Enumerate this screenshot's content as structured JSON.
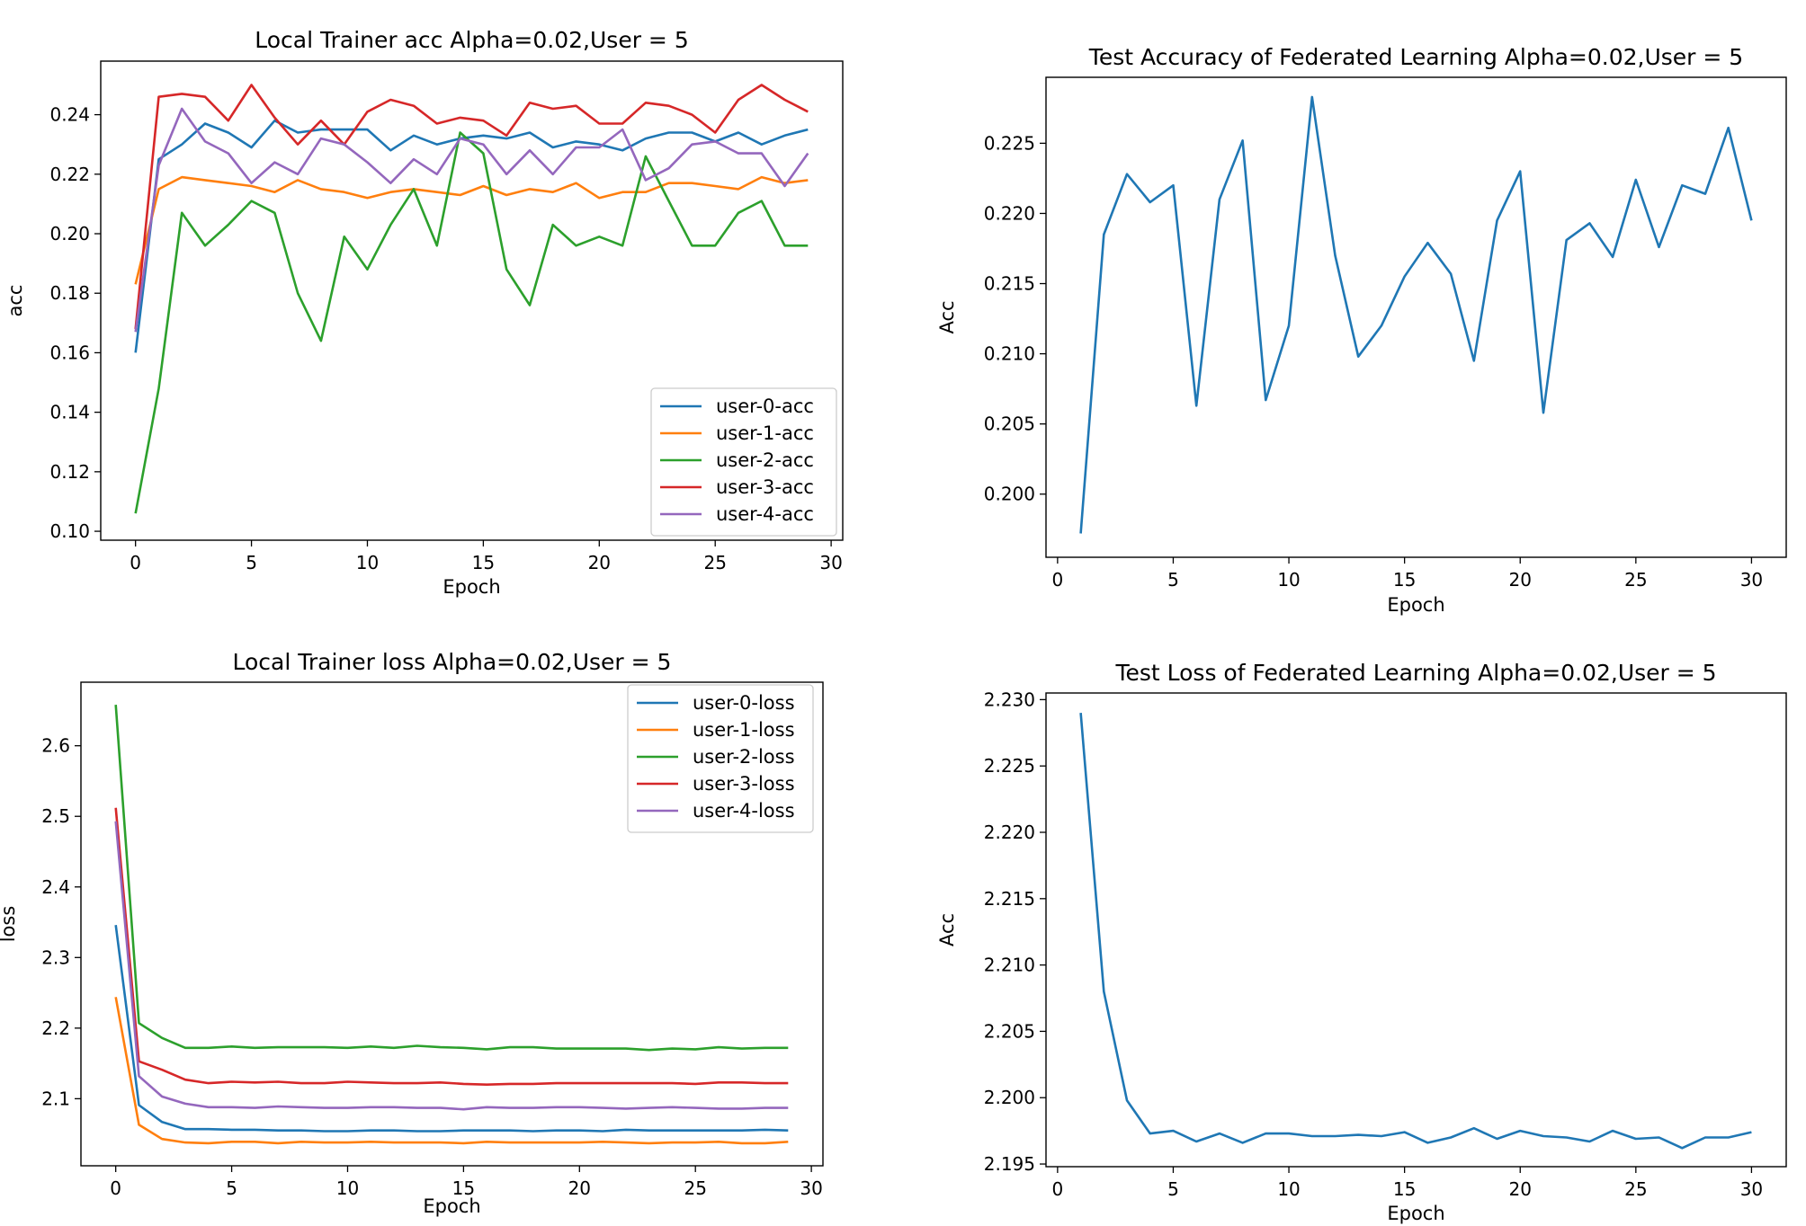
{
  "figure": {
    "charts": [
      {
        "type": "line",
        "title": "Local Trainer acc Alpha=0.02,User = 5",
        "xlabel": "Epoch",
        "ylabel": "acc",
        "xlim": [
          -1.5,
          30.5
        ],
        "ylim": [
          0.097,
          0.258
        ],
        "xticks": [
          0,
          5,
          10,
          15,
          20,
          25,
          30
        ],
        "yticks": [
          0.1,
          0.12,
          0.14,
          0.16,
          0.18,
          0.2,
          0.22,
          0.24
        ],
        "ytick_decimals": 2,
        "legend": "lower-right",
        "grid": false,
        "series": [
          {
            "name": "user-0-acc",
            "color": "#1f77b4",
            "x_start": 0,
            "values": [
              0.16,
              0.225,
              0.23,
              0.237,
              0.234,
              0.229,
              0.238,
              0.234,
              0.235,
              0.235,
              0.235,
              0.228,
              0.233,
              0.23,
              0.232,
              0.233,
              0.232,
              0.234,
              0.229,
              0.231,
              0.23,
              0.228,
              0.232,
              0.234,
              0.234,
              0.231,
              0.234,
              0.23,
              0.233,
              0.235
            ]
          },
          {
            "name": "user-1-acc",
            "color": "#ff7f0e",
            "x_start": 0,
            "values": [
              0.183,
              0.215,
              0.219,
              0.218,
              0.217,
              0.216,
              0.214,
              0.218,
              0.215,
              0.214,
              0.212,
              0.214,
              0.215,
              0.214,
              0.213,
              0.216,
              0.213,
              0.215,
              0.214,
              0.217,
              0.212,
              0.214,
              0.214,
              0.217,
              0.217,
              0.216,
              0.215,
              0.219,
              0.217,
              0.218
            ]
          },
          {
            "name": "user-2-acc",
            "color": "#2ca02c",
            "x_start": 0,
            "values": [
              0.106,
              0.148,
              0.207,
              0.196,
              0.203,
              0.211,
              0.207,
              0.18,
              0.164,
              0.199,
              0.188,
              0.203,
              0.215,
              0.196,
              0.234,
              0.227,
              0.188,
              0.176,
              0.203,
              0.196,
              0.199,
              0.196,
              0.226,
              0.211,
              0.196,
              0.196,
              0.207,
              0.211,
              0.196,
              0.196
            ]
          },
          {
            "name": "user-3-acc",
            "color": "#d62728",
            "x_start": 0,
            "values": [
              0.168,
              0.246,
              0.247,
              0.246,
              0.238,
              0.25,
              0.239,
              0.23,
              0.238,
              0.23,
              0.241,
              0.245,
              0.243,
              0.237,
              0.239,
              0.238,
              0.233,
              0.244,
              0.242,
              0.243,
              0.237,
              0.237,
              0.244,
              0.243,
              0.24,
              0.234,
              0.245,
              0.25,
              0.245,
              0.241
            ]
          },
          {
            "name": "user-4-acc",
            "color": "#9467bd",
            "x_start": 0,
            "values": [
              0.167,
              0.223,
              0.242,
              0.231,
              0.227,
              0.217,
              0.224,
              0.22,
              0.232,
              0.23,
              0.224,
              0.217,
              0.225,
              0.22,
              0.232,
              0.23,
              0.22,
              0.228,
              0.22,
              0.229,
              0.229,
              0.235,
              0.218,
              0.222,
              0.23,
              0.231,
              0.227,
              0.227,
              0.216,
              0.227
            ]
          }
        ]
      },
      {
        "type": "line",
        "title": "Test Accuracy of Federated Learning Alpha=0.02,User = 5",
        "xlabel": "Epoch",
        "ylabel": "Acc",
        "xlim": [
          -0.5,
          31.5
        ],
        "ylim": [
          0.1955,
          0.2297
        ],
        "xticks": [
          0,
          5,
          10,
          15,
          20,
          25,
          30
        ],
        "yticks": [
          0.2,
          0.205,
          0.21,
          0.215,
          0.22,
          0.225
        ],
        "ytick_decimals": 3,
        "grid": false,
        "series": [
          {
            "color": "#1f77b4",
            "x_start": 1,
            "values": [
              0.1972,
              0.2185,
              0.2228,
              0.2208,
              0.222,
              0.2063,
              0.221,
              0.2252,
              0.2067,
              0.212,
              0.2283,
              0.217,
              0.2098,
              0.212,
              0.2155,
              0.2179,
              0.2157,
              0.2095,
              0.2195,
              0.223,
              0.2058,
              0.2181,
              0.2193,
              0.2169,
              0.2224,
              0.2176,
              0.222,
              0.2214,
              0.2261,
              0.2195
            ]
          }
        ]
      },
      {
        "type": "line",
        "title": "Local Trainer loss Alpha=0.02,User = 5",
        "xlabel": "Epoch",
        "ylabel": "loss",
        "xlim": [
          -1.5,
          30.5
        ],
        "ylim": [
          2.005,
          2.69
        ],
        "xticks": [
          0,
          5,
          10,
          15,
          20,
          25,
          30
        ],
        "yticks": [
          2.1,
          2.2,
          2.3,
          2.4,
          2.5,
          2.6
        ],
        "ytick_decimals": 1,
        "legend": "upper-right",
        "grid": false,
        "series": [
          {
            "name": "user-0-loss",
            "color": "#1f77b4",
            "x_start": 0,
            "values": [
              2.346,
              2.091,
              2.067,
              2.057,
              2.057,
              2.056,
              2.056,
              2.055,
              2.055,
              2.054,
              2.054,
              2.055,
              2.055,
              2.054,
              2.054,
              2.055,
              2.055,
              2.055,
              2.054,
              2.055,
              2.055,
              2.054,
              2.056,
              2.055,
              2.055,
              2.055,
              2.055,
              2.055,
              2.056,
              2.055
            ]
          },
          {
            "name": "user-1-loss",
            "color": "#ff7f0e",
            "x_start": 0,
            "values": [
              2.244,
              2.063,
              2.043,
              2.038,
              2.037,
              2.039,
              2.039,
              2.037,
              2.039,
              2.038,
              2.038,
              2.039,
              2.038,
              2.038,
              2.038,
              2.037,
              2.039,
              2.038,
              2.038,
              2.038,
              2.038,
              2.039,
              2.038,
              2.037,
              2.038,
              2.038,
              2.039,
              2.037,
              2.037,
              2.039
            ]
          },
          {
            "name": "user-2-loss",
            "color": "#2ca02c",
            "x_start": 0,
            "values": [
              2.658,
              2.207,
              2.186,
              2.172,
              2.172,
              2.174,
              2.172,
              2.173,
              2.173,
              2.173,
              2.172,
              2.174,
              2.172,
              2.175,
              2.173,
              2.172,
              2.17,
              2.173,
              2.173,
              2.171,
              2.171,
              2.171,
              2.171,
              2.169,
              2.171,
              2.17,
              2.173,
              2.171,
              2.172,
              2.172
            ]
          },
          {
            "name": "user-3-loss",
            "color": "#d62728",
            "x_start": 0,
            "values": [
              2.512,
              2.153,
              2.141,
              2.127,
              2.122,
              2.124,
              2.123,
              2.124,
              2.122,
              2.122,
              2.124,
              2.123,
              2.122,
              2.122,
              2.123,
              2.121,
              2.12,
              2.121,
              2.121,
              2.122,
              2.122,
              2.122,
              2.122,
              2.122,
              2.122,
              2.121,
              2.123,
              2.123,
              2.122,
              2.122
            ]
          },
          {
            "name": "user-4-loss",
            "color": "#9467bd",
            "x_start": 0,
            "values": [
              2.493,
              2.132,
              2.103,
              2.093,
              2.088,
              2.088,
              2.087,
              2.089,
              2.088,
              2.087,
              2.087,
              2.088,
              2.088,
              2.087,
              2.087,
              2.085,
              2.088,
              2.087,
              2.087,
              2.088,
              2.088,
              2.087,
              2.086,
              2.087,
              2.088,
              2.087,
              2.086,
              2.086,
              2.087,
              2.087
            ]
          }
        ]
      },
      {
        "type": "line",
        "title": "Test Loss of Federated Learning Alpha=0.02,User = 5",
        "xlabel": "Epoch",
        "ylabel": "Acc",
        "xlim": [
          -0.5,
          31.5
        ],
        "ylim": [
          2.1948,
          2.2305
        ],
        "xticks": [
          0,
          5,
          10,
          15,
          20,
          25,
          30
        ],
        "yticks": [
          2.195,
          2.2,
          2.205,
          2.21,
          2.215,
          2.22,
          2.225,
          2.23
        ],
        "ytick_decimals": 3,
        "grid": false,
        "series": [
          {
            "color": "#1f77b4",
            "x_start": 1,
            "values": [
              2.229,
              2.208,
              2.1998,
              2.1973,
              2.1975,
              2.1967,
              2.1973,
              2.1966,
              2.1973,
              2.1973,
              2.1971,
              2.1971,
              2.1972,
              2.1971,
              2.1974,
              2.1966,
              2.197,
              2.1977,
              2.1969,
              2.1975,
              2.1971,
              2.197,
              2.1967,
              2.1975,
              2.1969,
              2.197,
              2.1962,
              2.197,
              2.197,
              2.1974
            ]
          }
        ]
      }
    ]
  }
}
